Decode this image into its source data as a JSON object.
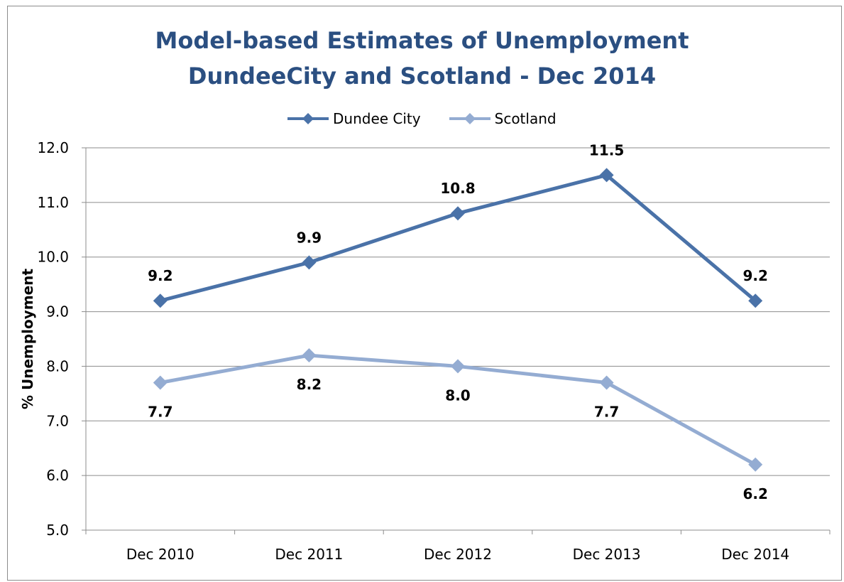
{
  "chart_data": {
    "type": "line",
    "title": "Model-based Estimates of Unemployment",
    "subtitle": "DundeeCity and Scotland - Dec 2014",
    "ylabel": "% Unemployment",
    "xlabel": "",
    "categories": [
      "Dec 2010",
      "Dec 2011",
      "Dec 2012",
      "Dec 2013",
      "Dec 2014"
    ],
    "ylim": [
      5.0,
      12.0
    ],
    "yticks": [
      "5.0",
      "6.0",
      "7.0",
      "8.0",
      "9.0",
      "10.0",
      "11.0",
      "12.0"
    ],
    "grid": true,
    "legend_position": "top",
    "series": [
      {
        "name": "Dundee City",
        "values": [
          9.2,
          9.9,
          10.8,
          11.5,
          9.2
        ],
        "labels": [
          "9.2",
          "9.9",
          "10.8",
          "11.5",
          "9.2"
        ],
        "color": "#4a72a8",
        "label_position": "above"
      },
      {
        "name": "Scotland",
        "values": [
          7.7,
          8.2,
          8.0,
          7.7,
          6.2
        ],
        "labels": [
          "7.7",
          "8.2",
          "8.0",
          "7.7",
          "6.2"
        ],
        "color": "#94acd2",
        "label_position": "below"
      }
    ]
  }
}
